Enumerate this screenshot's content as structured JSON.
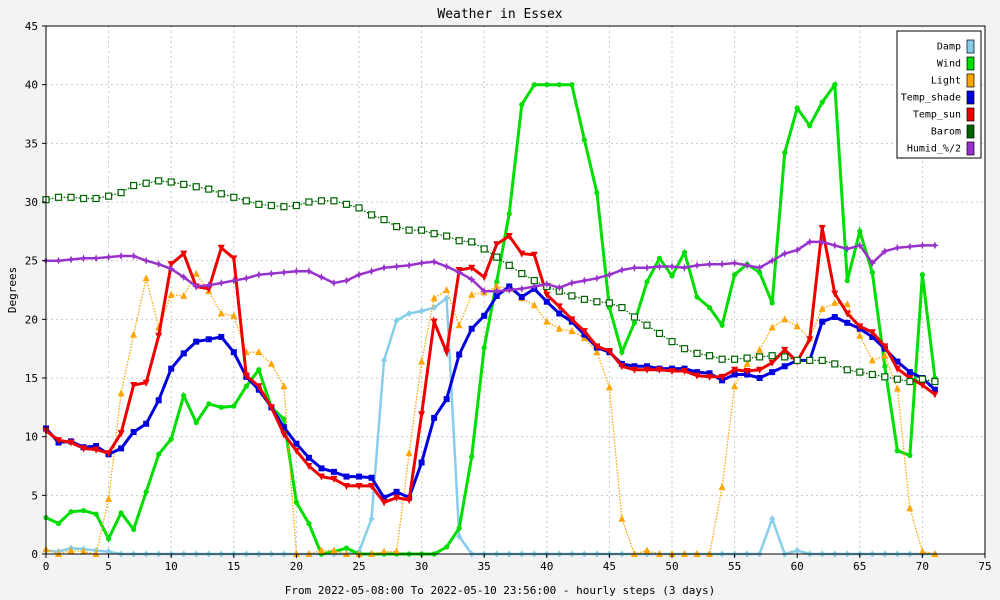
{
  "chart_data": {
    "type": "line",
    "title": "Weather in Essex",
    "xlabel": "From 2022-05-08:00 To 2022-05-10 23:56:00 - hourly steps (3 days)",
    "ylabel": "Degrees",
    "xlim": [
      0,
      75
    ],
    "ylim": [
      0,
      45
    ],
    "xticks": [
      0,
      5,
      10,
      15,
      20,
      25,
      30,
      35,
      40,
      45,
      50,
      55,
      60,
      65,
      70,
      75
    ],
    "yticks": [
      0,
      5,
      10,
      15,
      20,
      25,
      30,
      35,
      40,
      45
    ],
    "grid": true,
    "legend_position": "top-right",
    "x": [
      0,
      1,
      2,
      3,
      4,
      5,
      6,
      7,
      8,
      9,
      10,
      11,
      12,
      13,
      14,
      15,
      16,
      17,
      18,
      19,
      20,
      21,
      22,
      23,
      24,
      25,
      26,
      27,
      28,
      29,
      30,
      31,
      32,
      33,
      34,
      35,
      36,
      37,
      38,
      39,
      40,
      41,
      42,
      43,
      44,
      45,
      46,
      47,
      48,
      49,
      50,
      51,
      52,
      53,
      54,
      55,
      56,
      57,
      58,
      59,
      60,
      61,
      62,
      63,
      64,
      65,
      66,
      67,
      68,
      69,
      70,
      71
    ],
    "series": [
      {
        "name": "Damp",
        "color": "#87ceeb",
        "marker": "diamond",
        "values": [
          0.3,
          0.2,
          0.5,
          0.4,
          0.3,
          0.2,
          0,
          0,
          0,
          0,
          0,
          0,
          0,
          0,
          0,
          0,
          0,
          0,
          0,
          0,
          0,
          0,
          0,
          0,
          0,
          0.2,
          3,
          16.5,
          19.9,
          20.5,
          20.7,
          21,
          21.8,
          1.5,
          0,
          0,
          0,
          0,
          0,
          0,
          0,
          0,
          0,
          0,
          0,
          0,
          0,
          0,
          0,
          0,
          0,
          0,
          0,
          0,
          0,
          0,
          0,
          0,
          3,
          0,
          0.3,
          0,
          0,
          0,
          0,
          0,
          0,
          0,
          0,
          0,
          0,
          0
        ]
      },
      {
        "name": "Wind",
        "color": "#00dd00",
        "marker": "circle",
        "values": [
          3.1,
          2.6,
          3.6,
          3.7,
          3.4,
          1.3,
          3.5,
          2.1,
          5.3,
          8.5,
          9.8,
          13.5,
          11.2,
          12.8,
          12.5,
          12.6,
          14.3,
          15.7,
          12.5,
          11.5,
          4.4,
          2.6,
          0,
          0.2,
          0.5,
          0,
          0,
          0,
          0,
          0,
          0,
          0,
          0.6,
          2.2,
          8.3,
          17.6,
          23.2,
          29,
          38.3,
          40,
          40,
          40,
          40,
          35.3,
          30.8,
          21,
          17.2,
          19.7,
          23.2,
          25.2,
          23.7,
          25.7,
          21.9,
          21,
          19.5,
          23.8,
          24.7,
          24,
          21.4,
          34.2,
          38,
          36.5,
          38.5,
          40,
          23.3,
          27.5,
          24,
          16,
          8.8,
          8.4,
          23.8,
          15
        ]
      },
      {
        "name": "Light",
        "color": "#ffa500",
        "marker": "triangle",
        "values": [
          0.4,
          0,
          0.3,
          0.2,
          0,
          4.7,
          13.7,
          18.7,
          23.5,
          19.3,
          22.1,
          22,
          23.9,
          22.4,
          20.5,
          20.3,
          17.2,
          17.2,
          16.2,
          14.3,
          0,
          0,
          0.3,
          0.3,
          0,
          0,
          0,
          0.2,
          0.2,
          8.6,
          16.4,
          21.8,
          22.5,
          19.5,
          22.1,
          22.3,
          22.8,
          22.6,
          21.8,
          21.2,
          19.8,
          19.2,
          19,
          18.4,
          17.2,
          14.2,
          3,
          0,
          0.3,
          0,
          0,
          0,
          0,
          0,
          5.7,
          14.3,
          16.2,
          17.4,
          19.3,
          20,
          19.4,
          18.4,
          20.9,
          21.4,
          21.3,
          18.6,
          16.5,
          16.9,
          14.1,
          3.9,
          0.2,
          0
        ]
      },
      {
        "name": "Temp_shade",
        "color": "#0000dd",
        "marker": "square",
        "values": [
          10.7,
          9.5,
          9.6,
          9.1,
          9.2,
          8.5,
          9,
          10.4,
          11.1,
          13.1,
          15.8,
          17.1,
          18.1,
          18.3,
          18.5,
          17.2,
          15.1,
          14,
          12.5,
          10.8,
          9.4,
          8.2,
          7.3,
          7,
          6.6,
          6.6,
          6.5,
          4.8,
          5.3,
          4.8,
          7.8,
          11.6,
          13.2,
          17,
          19.2,
          20.3,
          22,
          22.8,
          21.9,
          22.6,
          21.5,
          20.5,
          19.8,
          18.7,
          17.6,
          17.2,
          16.2,
          16,
          16,
          15.8,
          15.8,
          15.8,
          15.5,
          15.4,
          14.8,
          15.3,
          15.3,
          15,
          15.5,
          16,
          16.5,
          16.5,
          19.8,
          20.2,
          19.7,
          19.2,
          18.5,
          17.5,
          16.4,
          15.5,
          15,
          14
        ]
      },
      {
        "name": "Temp_sun",
        "color": "#ee0000",
        "marker": "inv-triangle",
        "values": [
          10.5,
          9.7,
          9.5,
          9,
          8.9,
          8.6,
          10.3,
          14.4,
          14.6,
          18.6,
          24.7,
          25.6,
          22.8,
          22.6,
          26.1,
          25.2,
          15.2,
          14.3,
          12.5,
          10.2,
          8.8,
          7.5,
          6.6,
          6.4,
          5.8,
          5.8,
          5.8,
          4.4,
          4.8,
          4.6,
          11.9,
          19.8,
          17.2,
          24.2,
          24.4,
          23.6,
          26.4,
          27.1,
          25.6,
          25.5,
          22.1,
          21.1,
          20,
          19,
          17.7,
          17.3,
          16,
          15.7,
          15.7,
          15.7,
          15.6,
          15.6,
          15.2,
          15.1,
          15.1,
          15.7,
          15.6,
          15.7,
          16.3,
          17.4,
          16.4,
          18.3,
          27.8,
          22.2,
          20.5,
          19.4,
          18.9,
          17.7,
          15.8,
          15,
          14.4,
          13.6
        ]
      },
      {
        "name": "Barom",
        "color": "#006400",
        "marker": "hollow-square",
        "values": [
          30.2,
          30.4,
          30.4,
          30.3,
          30.3,
          30.5,
          30.8,
          31.4,
          31.6,
          31.8,
          31.7,
          31.5,
          31.3,
          31.1,
          30.7,
          30.4,
          30.1,
          29.8,
          29.7,
          29.6,
          29.7,
          30,
          30.1,
          30.1,
          29.8,
          29.5,
          28.9,
          28.5,
          27.9,
          27.6,
          27.6,
          27.3,
          27.1,
          26.7,
          26.6,
          26,
          25.3,
          24.6,
          23.9,
          23.3,
          22.8,
          22.4,
          22,
          21.7,
          21.5,
          21.4,
          21,
          20.2,
          19.5,
          18.8,
          18.1,
          17.5,
          17.1,
          16.9,
          16.6,
          16.6,
          16.7,
          16.8,
          16.9,
          16.8,
          16.5,
          16.5,
          16.5,
          16.2,
          15.7,
          15.5,
          15.3,
          15.1,
          14.9,
          14.7,
          14.9,
          14.7
        ]
      },
      {
        "name": "Humid_%/2",
        "color": "#9932cc",
        "marker": "star",
        "values": [
          25,
          25,
          25.1,
          25.2,
          25.2,
          25.3,
          25.4,
          25.4,
          25,
          24.7,
          24.3,
          23.6,
          22.8,
          22.9,
          23.1,
          23.3,
          23.5,
          23.8,
          23.9,
          24,
          24.1,
          24.1,
          23.6,
          23.1,
          23.3,
          23.8,
          24.1,
          24.4,
          24.5,
          24.6,
          24.8,
          24.9,
          24.5,
          24,
          23.4,
          22.4,
          22.4,
          22.5,
          22.6,
          22.8,
          23,
          22.7,
          23.1,
          23.3,
          23.5,
          23.8,
          24.2,
          24.4,
          24.4,
          24.5,
          24.5,
          24.4,
          24.6,
          24.7,
          24.7,
          24.8,
          24.6,
          24.4,
          25,
          25.6,
          25.9,
          26.6,
          26.6,
          26.3,
          26,
          26.3,
          24.8,
          25.8,
          26.1,
          26.2,
          26.3,
          26.3
        ]
      }
    ]
  }
}
